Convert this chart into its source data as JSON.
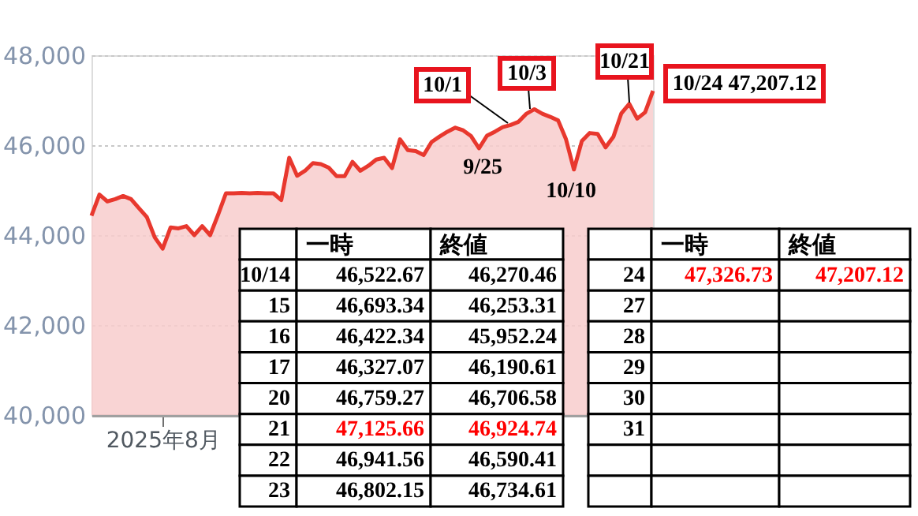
{
  "chart_data": [
    {
      "type": "area",
      "categories": [
        null,
        null,
        null,
        null,
        null,
        null,
        null,
        null,
        null,
        "2025年8月",
        null,
        null,
        null,
        null,
        null,
        null,
        null,
        null,
        null,
        null,
        null,
        null,
        null,
        null,
        null,
        null,
        null,
        null,
        null,
        null,
        null,
        null,
        null,
        null,
        null,
        null,
        null,
        null,
        null,
        null,
        null,
        null,
        null,
        null,
        null,
        null,
        null,
        null,
        null,
        null,
        null,
        null,
        null,
        null,
        null,
        null,
        null,
        null,
        null,
        null,
        null,
        null,
        null,
        null,
        null,
        null,
        null,
        null,
        null,
        null,
        null,
        null
      ],
      "series": [
        {
          "color": "#e8382e",
          "values": [
            44430,
            44900,
            44750,
            44800,
            44870,
            44800,
            44600,
            44400,
            43950,
            43700,
            44170,
            44150,
            44200,
            44000,
            44200,
            44000,
            44450,
            44930,
            44930,
            44940,
            44930,
            44940,
            44930,
            44930,
            44780,
            45720,
            45320,
            45430,
            45600,
            45580,
            45500,
            45310,
            45310,
            45630,
            45430,
            45540,
            45680,
            45720,
            45490,
            46130,
            45890,
            45870,
            45780,
            46070,
            46190,
            46300,
            46390,
            46330,
            46200,
            45930,
            46210,
            46300,
            46400,
            46450,
            46520,
            46700,
            46800,
            46700,
            46630,
            46550,
            46130,
            45460,
            46090,
            46270,
            46250,
            45950,
            46190,
            46710,
            46920,
            46590,
            46730,
            47210
          ]
        }
      ],
      "ylim": [
        40000,
        48000
      ],
      "yticks": [
        {
          "value": 40000,
          "label": "40,000"
        },
        {
          "value": 42000,
          "label": "42,000"
        },
        {
          "value": 44000,
          "label": "44,000"
        },
        {
          "value": 46000,
          "label": "46,000"
        },
        {
          "value": 48000,
          "label": "48,000"
        }
      ],
      "grid": "y",
      "annotations": [
        "10/1",
        "10/3",
        "10/21",
        "10/24 47,207.12",
        "9/25",
        "10/10"
      ]
    },
    {
      "type": "other",
      "annotations": [
        "一時",
        "終値",
        "10/14",
        "46,522.67",
        "46,270.46",
        "15",
        "46,693.34",
        "46,253.31",
        "16",
        "46,422.34",
        "45,952.24",
        "17",
        "46,327.07",
        "46,190.61",
        "20",
        "46,759.27",
        "46,706.58",
        "21",
        "47,125.66",
        "46,924.74",
        "22",
        "46,941.56",
        "46,590.41",
        "23",
        "46,802.15",
        "46,734.61"
      ]
    },
    {
      "type": "other",
      "annotations": [
        "一時",
        "終値",
        "24",
        "47,326.73",
        "47,207.12",
        "27",
        "28",
        "29",
        "30",
        "31"
      ]
    }
  ]
}
